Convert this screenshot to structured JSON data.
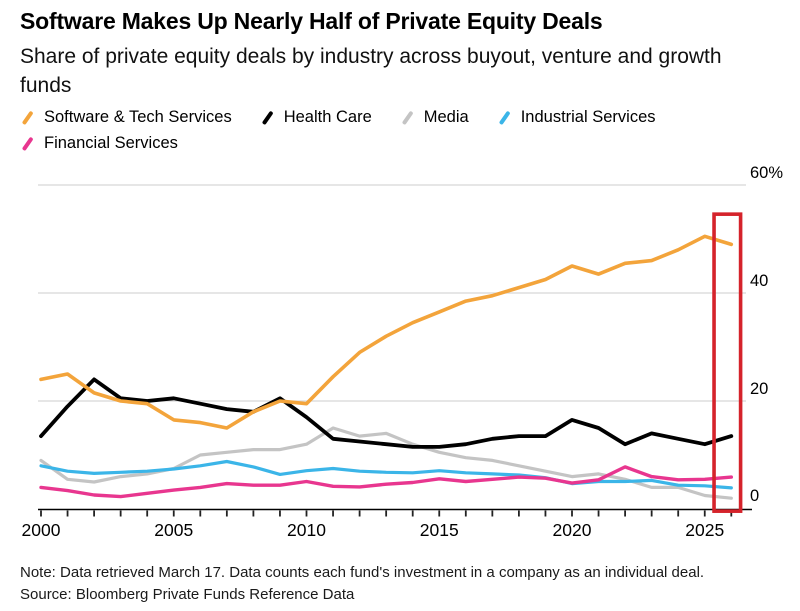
{
  "header": {
    "title": "Software Makes Up Nearly Half of Private Equity Deals",
    "subtitle": "Share of private equity deals by industry across buyout, venture and growth funds"
  },
  "legend": {
    "items": [
      {
        "label": "Software & Tech Services",
        "color": "#f3a43b"
      },
      {
        "label": "Health Care",
        "color": "#000000"
      },
      {
        "label": "Media",
        "color": "#c4c4c4"
      },
      {
        "label": "Industrial Services",
        "color": "#3bb5e8"
      },
      {
        "label": "Financial Services",
        "color": "#e8368f"
      }
    ]
  },
  "chart_data": {
    "type": "line",
    "title": "Software Makes Up Nearly Half of Private Equity Deals",
    "subtitle": "Share of private equity deals by industry across buyout, venture and growth funds",
    "unit": "%",
    "x": [
      2000,
      2001,
      2002,
      2003,
      2004,
      2005,
      2006,
      2007,
      2008,
      2009,
      2010,
      2011,
      2012,
      2013,
      2014,
      2015,
      2016,
      2017,
      2018,
      2019,
      2020,
      2021,
      2022,
      2023,
      2024,
      2025,
      2026
    ],
    "series": [
      {
        "name": "Software & Tech Services",
        "color": "#f3a43b",
        "values": [
          24,
          25,
          21.5,
          20,
          19.5,
          16.5,
          16,
          15,
          18,
          20,
          19.5,
          24.5,
          29,
          32,
          34.5,
          36.5,
          38.5,
          39.5,
          41,
          42.5,
          45,
          43.5,
          45.5,
          46,
          48,
          50.5,
          49
        ]
      },
      {
        "name": "Health Care",
        "color": "#000000",
        "values": [
          13.5,
          19,
          24,
          20.5,
          20,
          20.5,
          19.5,
          18.5,
          18,
          20.5,
          17,
          13,
          12.5,
          12,
          11.5,
          11.5,
          12,
          13,
          13.5,
          13.5,
          16.5,
          15,
          12,
          14,
          13,
          12,
          13.5
        ]
      },
      {
        "name": "Media",
        "color": "#c4c4c4",
        "values": [
          9,
          5.5,
          5,
          6,
          6.5,
          7.5,
          10,
          10.5,
          11,
          11,
          12,
          15,
          13.5,
          14,
          12,
          10.5,
          9.5,
          9,
          8,
          7,
          6,
          6.5,
          5.5,
          4,
          4,
          2.5,
          2
        ]
      },
      {
        "name": "Industrial Services",
        "color": "#3bb5e8",
        "values": [
          8,
          7,
          6.6,
          6.8,
          7,
          7.4,
          8,
          8.8,
          7.8,
          6.4,
          7.1,
          7.5,
          7,
          6.8,
          6.7,
          7.1,
          6.7,
          6.5,
          6.3,
          5.8,
          4.7,
          5.1,
          5.1,
          5.3,
          4.4,
          4.3,
          3.9
        ]
      },
      {
        "name": "Financial Services",
        "color": "#e8368f",
        "values": [
          4,
          3.4,
          2.6,
          2.3,
          2.9,
          3.5,
          4,
          4.7,
          4.4,
          4.4,
          5.1,
          4.2,
          4.1,
          4.6,
          4.9,
          5.6,
          5.1,
          5.5,
          5.9,
          5.7,
          4.8,
          5.4,
          7.8,
          6,
          5.4,
          5.5,
          5.9
        ]
      }
    ],
    "xlabel": "",
    "ylabel": "",
    "ylim": [
      0,
      60
    ],
    "yticks": [
      {
        "value": 60,
        "label": "60%"
      },
      {
        "value": 40,
        "label": "40"
      },
      {
        "value": 20,
        "label": "20"
      },
      {
        "value": 0,
        "label": "0"
      }
    ],
    "xticks_labeled": [
      2000,
      2005,
      2010,
      2015,
      2020,
      2025
    ],
    "grid": "horizontal",
    "legend_position": "top-left",
    "highlight_box": {
      "x_range_years": [
        2025.35,
        2026.35
      ],
      "y_range": [
        -0.4,
        54.6
      ],
      "color": "#d5232b"
    },
    "grid_color": "#d8d8d8",
    "axis_color": "#000000"
  },
  "footer": {
    "note": "Note: Data retrieved March 17. Data counts each fund's investment in a company as an individual deal.",
    "source": "Source: Bloomberg Private Funds Reference Data"
  }
}
